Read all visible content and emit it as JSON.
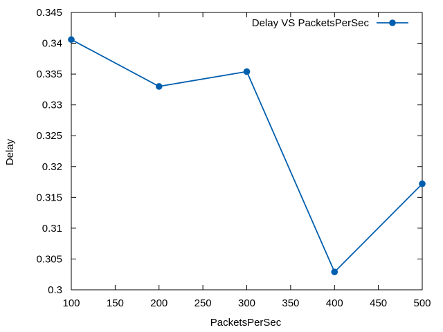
{
  "chart_data": {
    "type": "line",
    "title": "",
    "xlabel": "PacketsPerSec",
    "ylabel": "Delay",
    "xlim": [
      100,
      500
    ],
    "ylim": [
      0.3,
      0.345
    ],
    "x_ticks": [
      100,
      150,
      200,
      250,
      300,
      350,
      400,
      450,
      500
    ],
    "y_ticks": [
      "0.3",
      "0.305",
      "0.31",
      "0.315",
      "0.32",
      "0.325",
      "0.33",
      "0.335",
      "0.34",
      "0.345"
    ],
    "grid": false,
    "legend_position": "top-right",
    "series": [
      {
        "name": "Delay VS PacketsPerSec",
        "color": "#005eae",
        "marker": "circle",
        "x": [
          100,
          200,
          300,
          400,
          500
        ],
        "y": [
          0.3406,
          0.333,
          0.3354,
          0.3029,
          0.3172
        ]
      }
    ]
  }
}
